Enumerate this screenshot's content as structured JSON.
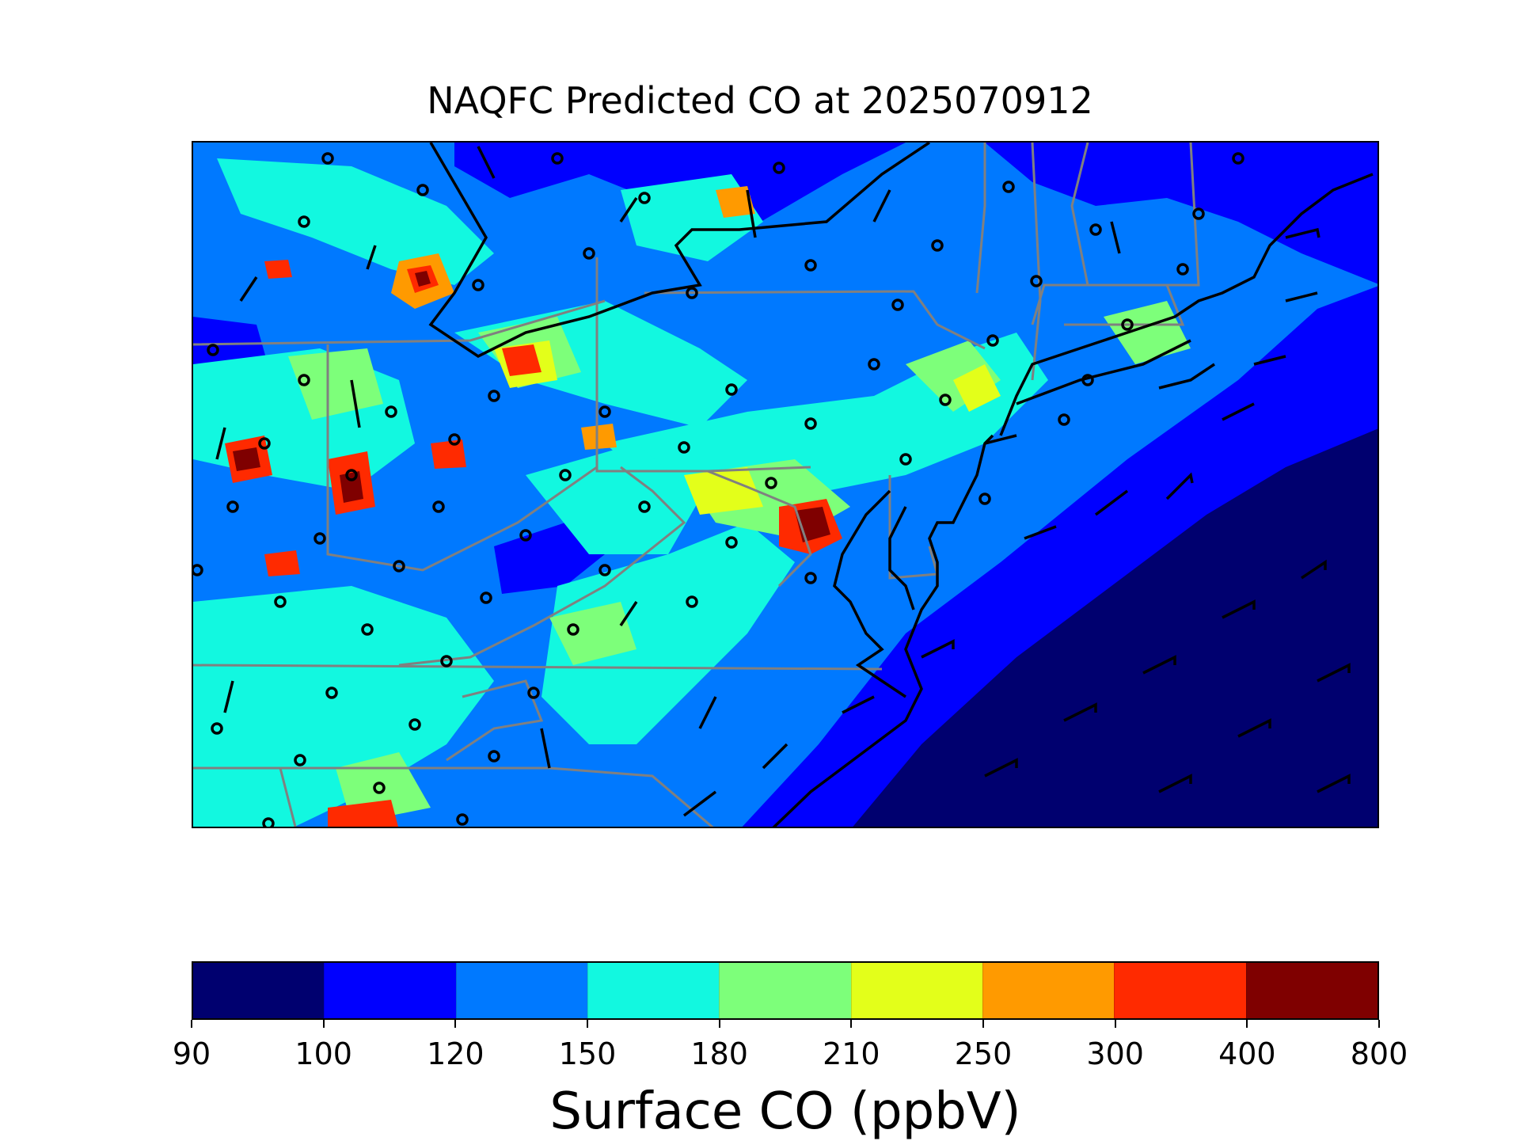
{
  "figure": {
    "title": "NAQFC Predicted CO at 2025070912"
  },
  "map": {
    "field": "Surface CO",
    "units": "ppbV",
    "overlays": [
      "concentration-field",
      "state-borders",
      "coastline",
      "monitor-sites",
      "wind-barbs"
    ],
    "region": "Mid-Atlantic and Northeast United States"
  },
  "colorbar": {
    "label": "Surface CO (ppbV)",
    "ticks": [
      "90",
      "100",
      "120",
      "150",
      "180",
      "210",
      "250",
      "300",
      "400",
      "800"
    ],
    "colors": [
      "#00006f",
      "#0000ff",
      "#0079ff",
      "#12f8e0",
      "#7dff7a",
      "#e3ff1a",
      "#ff9a00",
      "#ff2a00",
      "#7f0000"
    ]
  }
}
